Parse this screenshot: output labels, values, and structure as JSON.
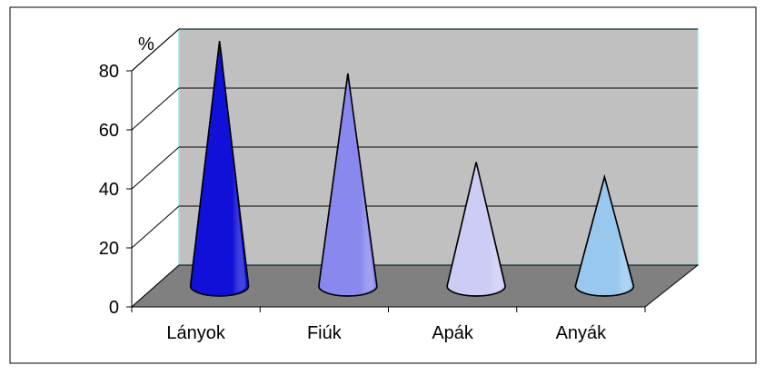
{
  "chart_data": {
    "type": "bar",
    "style": "3d-cone",
    "unit_label": "%",
    "categories": [
      "Lányok",
      "Fiúk",
      "Apák",
      "Anyák"
    ],
    "values": [
      83,
      72,
      42,
      37
    ],
    "ylim": [
      0,
      80
    ],
    "yticks": [
      "0",
      "20",
      "40",
      "60",
      "80"
    ],
    "grid": true,
    "legend": "none",
    "colors": {
      "bars": [
        "#1010d8",
        "#8888ee",
        "#ccccf4",
        "#99c8ee"
      ],
      "back_wall": "#c0c0c0",
      "floor": "#808080",
      "wall_border": "#9ae6ee",
      "gridline": "#000000",
      "frame": "#000000"
    }
  }
}
